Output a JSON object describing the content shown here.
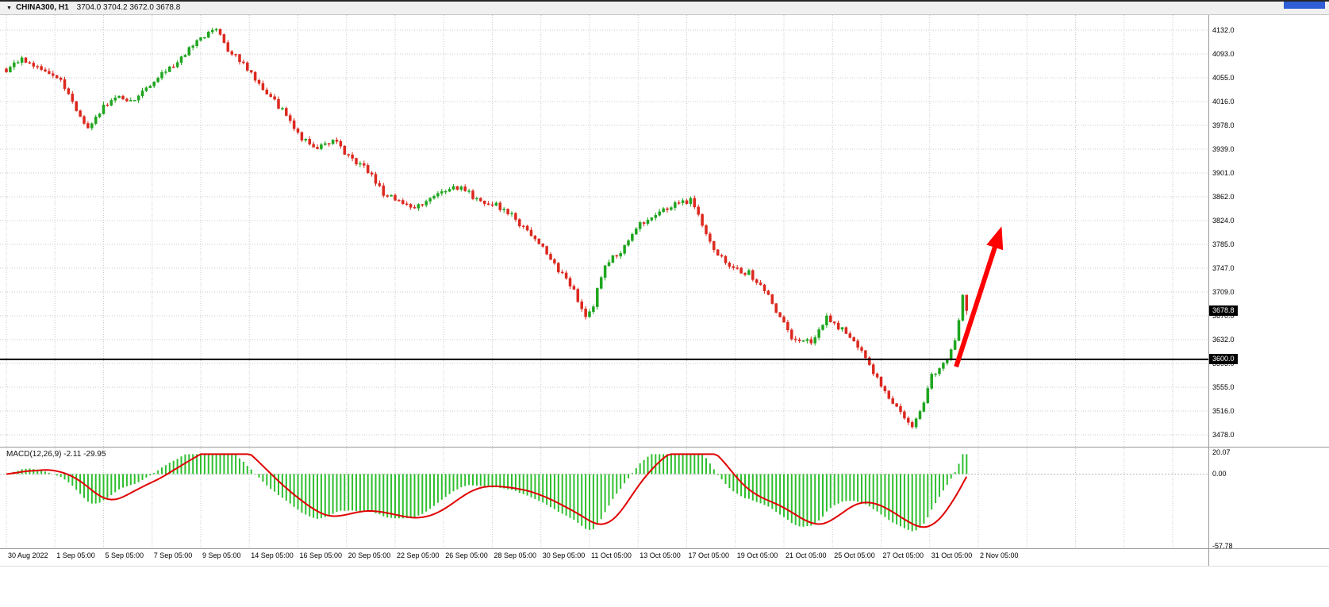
{
  "header": {
    "dropdown_icon": "▼",
    "symbol_timeframe": "CHINA300, H1",
    "ohlc_text": "3704.0 3704.2 3672.0 3678.8"
  },
  "colors": {
    "up_candle": "#1fa51f",
    "down_candle": "#dc281e",
    "histogram": "#2fbf2f",
    "signal": "#e00000",
    "grid": "#c8c8c8",
    "price_line": "#000000",
    "arrow": "#ff0000",
    "badge_bg": "#000000",
    "badge_text": "#ffffff",
    "accent_fragment": "#2f5ed6"
  },
  "chart_data": {
    "type": "candlestick",
    "symbol": "CHINA300",
    "timeframe": "H1",
    "title": "CHINA300, H1",
    "current_bar": {
      "open": 3704.0,
      "high": 3704.2,
      "low": 3672.0,
      "close": 3678.8
    },
    "y_ticks": [
      "4132.0",
      "4093.0",
      "4055.0",
      "4016.0",
      "3978.0",
      "3939.0",
      "3901.0",
      "3862.0",
      "3824.0",
      "3785.0",
      "3747.0",
      "3709.0",
      "3670.0",
      "3632.0",
      "3593.0",
      "3555.0",
      "3516.0",
      "3478.0"
    ],
    "y_axis_range": {
      "top": 4132.0,
      "bottom": 3478.0
    },
    "x_labels": [
      "30 Aug 2022",
      "1 Sep 05:00",
      "5 Sep 05:00",
      "7 Sep 05:00",
      "9 Sep 05:00",
      "14 Sep 05:00",
      "16 Sep 05:00",
      "20 Sep 05:00",
      "22 Sep 05:00",
      "26 Sep 05:00",
      "28 Sep 05:00",
      "30 Sep 05:00",
      "11 Oct 05:00",
      "13 Oct 05:00",
      "17 Oct 05:00",
      "19 Oct 05:00",
      "21 Oct 05:00",
      "25 Oct 05:00",
      "27 Oct 05:00",
      "31 Oct 05:00",
      "2 Nov 05:00"
    ],
    "grid": true,
    "price_line": 3600.0,
    "price_badges": [
      {
        "text": "3678.8",
        "price": 3678.8
      },
      {
        "text": "3600.0",
        "price": 3600.0
      }
    ],
    "candle_count": 248,
    "close_waypoints": [
      [
        0,
        4068
      ],
      [
        4,
        4085
      ],
      [
        8,
        4070
      ],
      [
        14,
        4052
      ],
      [
        18,
        4005
      ],
      [
        21,
        3974
      ],
      [
        25,
        4008
      ],
      [
        29,
        4025
      ],
      [
        33,
        4018
      ],
      [
        39,
        4058
      ],
      [
        44,
        4080
      ],
      [
        48,
        4110
      ],
      [
        52,
        4128
      ],
      [
        54,
        4135
      ],
      [
        57,
        4095
      ],
      [
        60,
        4085
      ],
      [
        64,
        4052
      ],
      [
        68,
        4025
      ],
      [
        72,
        3995
      ],
      [
        76,
        3958
      ],
      [
        80,
        3942
      ],
      [
        84,
        3955
      ],
      [
        88,
        3928
      ],
      [
        93,
        3905
      ],
      [
        97,
        3868
      ],
      [
        100,
        3858
      ],
      [
        105,
        3845
      ],
      [
        109,
        3862
      ],
      [
        113,
        3876
      ],
      [
        117,
        3880
      ],
      [
        121,
        3858
      ],
      [
        125,
        3852
      ],
      [
        129,
        3838
      ],
      [
        133,
        3812
      ],
      [
        137,
        3788
      ],
      [
        141,
        3752
      ],
      [
        145,
        3722
      ],
      [
        149,
        3670
      ],
      [
        151,
        3688
      ],
      [
        154,
        3755
      ],
      [
        159,
        3780
      ],
      [
        163,
        3820
      ],
      [
        168,
        3838
      ],
      [
        173,
        3852
      ],
      [
        176,
        3858
      ],
      [
        179,
        3820
      ],
      [
        183,
        3768
      ],
      [
        187,
        3745
      ],
      [
        191,
        3740
      ],
      [
        195,
        3712
      ],
      [
        198,
        3680
      ],
      [
        202,
        3636
      ],
      [
        207,
        3628
      ],
      [
        211,
        3668
      ],
      [
        215,
        3648
      ],
      [
        219,
        3622
      ],
      [
        222,
        3588
      ],
      [
        227,
        3540
      ],
      [
        231,
        3505
      ],
      [
        233,
        3490
      ],
      [
        236,
        3530
      ],
      [
        238,
        3572
      ],
      [
        241,
        3590
      ],
      [
        244,
        3628
      ],
      [
        246,
        3700
      ],
      [
        247,
        3678.8
      ]
    ],
    "annotation_arrow": {
      "description": "thick red arrow pointing up-right from the 3600 line toward 3815",
      "from": {
        "index": 244.3,
        "price": 3588
      },
      "to": {
        "index": 256,
        "price": 3815
      }
    },
    "indicator": {
      "name": "MACD",
      "params": [
        12,
        26,
        9
      ],
      "label": "MACD(12,26,9) -2.11 -29.95",
      "values": [
        -2.11,
        -29.95
      ],
      "scale_ticks": [
        "20.07",
        "0.00",
        "-57.78"
      ],
      "range": {
        "max": 20.07,
        "min": -57.78
      }
    }
  }
}
